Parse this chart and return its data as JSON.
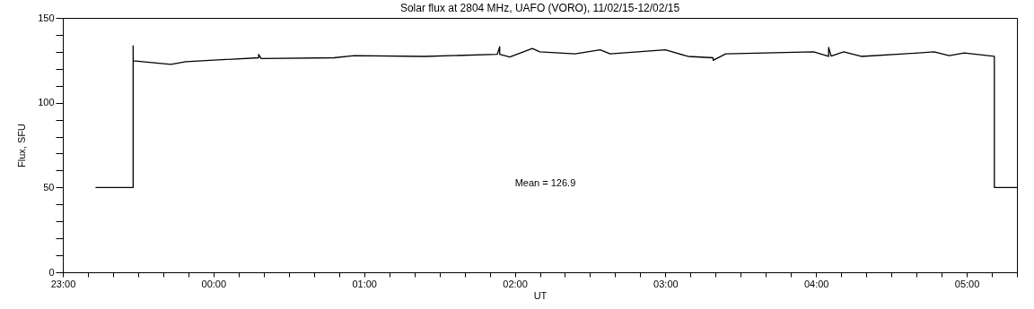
{
  "chart_data": {
    "type": "line",
    "title": "Solar flux at 2804 MHz, UAFO (VORO),  11/02/15-12/02/15",
    "xlabel": "UT",
    "ylabel": "Flux, SFU",
    "x": [
      "--02-11T23:13",
      "--02-11T23:28",
      "--02-11T23:28",
      "--02-11T23:28",
      "--02-11T23:43",
      "--02-11T23:49",
      "--02-12T00:18",
      "--02-12T00:18",
      "--02-12T00:19",
      "--02-12T00:48",
      "--02-12T00:56",
      "--02-12T01:24",
      "--02-12T01:53",
      "--02-12T01:54",
      "--02-12T01:54",
      "--02-12T01:58",
      "--02-12T02:07",
      "--02-12T02:10",
      "--02-12T02:24",
      "--02-12T02:34",
      "--02-12T02:38",
      "--02-12T03:00",
      "--02-12T03:09",
      "--02-12T03:19",
      "--02-12T03:19",
      "--02-12T03:24",
      "--02-12T03:59",
      "--02-12T04:05",
      "--02-12T04:05",
      "--02-12T04:06",
      "--02-12T04:11",
      "--02-12T04:18",
      "--02-12T04:35",
      "--02-12T04:47",
      "--02-12T04:53",
      "--02-12T04:59",
      "--02-12T05:11",
      "--02-12T05:11",
      "--02-12T05:11",
      "--02-12T05:20"
    ],
    "series": [
      {
        "color": "#000000",
        "values": [
          50,
          50,
          133.5,
          124.7,
          122.6,
          124.2,
          126.5,
          128.5,
          126,
          126.5,
          127.7,
          127.3,
          128.5,
          133,
          128.5,
          127,
          132,
          130,
          128.8,
          131.2,
          128.8,
          131.2,
          127.3,
          126.5,
          125,
          128.8,
          130,
          127.3,
          132.6,
          127.5,
          130,
          127.3,
          128.8,
          130,
          127.7,
          129.3,
          127.3,
          127.3,
          50,
          50
        ]
      }
    ],
    "xlim": [
      "--02-11T23:00",
      "--02-12T05:20"
    ],
    "xticks": [
      {
        "value": "--02-11T23:00",
        "label": "23:00"
      },
      {
        "value": "--02-11T23:10",
        "label": null
      },
      {
        "value": "--02-11T23:20",
        "label": null
      },
      {
        "value": "--02-11T23:30",
        "label": null
      },
      {
        "value": "--02-11T23:40",
        "label": null
      },
      {
        "value": "--02-11T23:50",
        "label": null
      },
      {
        "value": "--02-12T00:00",
        "label": "00:00"
      },
      {
        "value": "--02-12T00:10",
        "label": null
      },
      {
        "value": "--02-12T00:20",
        "label": null
      },
      {
        "value": "--02-12T00:30",
        "label": null
      },
      {
        "value": "--02-12T00:40",
        "label": null
      },
      {
        "value": "--02-12T00:50",
        "label": null
      },
      {
        "value": "--02-12T01:00",
        "label": "01:00"
      },
      {
        "value": "--02-12T01:10",
        "label": null
      },
      {
        "value": "--02-12T01:20",
        "label": null
      },
      {
        "value": "--02-12T01:30",
        "label": null
      },
      {
        "value": "--02-12T01:40",
        "label": null
      },
      {
        "value": "--02-12T01:50",
        "label": null
      },
      {
        "value": "--02-12T02:00",
        "label": "02:00"
      },
      {
        "value": "--02-12T02:10",
        "label": null
      },
      {
        "value": "--02-12T02:20",
        "label": null
      },
      {
        "value": "--02-12T02:30",
        "label": null
      },
      {
        "value": "--02-12T02:40",
        "label": null
      },
      {
        "value": "--02-12T02:50",
        "label": null
      },
      {
        "value": "--02-12T03:00",
        "label": "03:00"
      },
      {
        "value": "--02-12T03:10",
        "label": null
      },
      {
        "value": "--02-12T03:20",
        "label": null
      },
      {
        "value": "--02-12T03:30",
        "label": null
      },
      {
        "value": "--02-12T03:40",
        "label": null
      },
      {
        "value": "--02-12T03:50",
        "label": null
      },
      {
        "value": "--02-12T04:00",
        "label": "04:00"
      },
      {
        "value": "--02-12T04:10",
        "label": null
      },
      {
        "value": "--02-12T04:20",
        "label": null
      },
      {
        "value": "--02-12T04:30",
        "label": null
      },
      {
        "value": "--02-12T04:40",
        "label": null
      },
      {
        "value": "--02-12T04:50",
        "label": null
      },
      {
        "value": "--02-12T05:00",
        "label": "05:00"
      },
      {
        "value": "--02-12T05:10",
        "label": null
      },
      {
        "value": "--02-12T05:20",
        "label": null
      }
    ],
    "ylim": [
      0,
      150
    ],
    "yticks": [
      0,
      {
        "value": 10,
        "label": null
      },
      {
        "value": 20,
        "label": null
      },
      {
        "value": 30,
        "label": null
      },
      {
        "value": 40,
        "label": null
      },
      50,
      {
        "value": 60,
        "label": null
      },
      {
        "value": 70,
        "label": null
      },
      {
        "value": 80,
        "label": null
      },
      {
        "value": 90,
        "label": null
      },
      100,
      {
        "value": 110,
        "label": null
      },
      {
        "value": 120,
        "label": null
      },
      {
        "value": 130,
        "label": null
      },
      {
        "value": 140,
        "label": null
      },
      150
    ],
    "grid": false,
    "marker": "none",
    "line_style": "solid",
    "annotations": [
      "Mean =  126.9"
    ]
  }
}
